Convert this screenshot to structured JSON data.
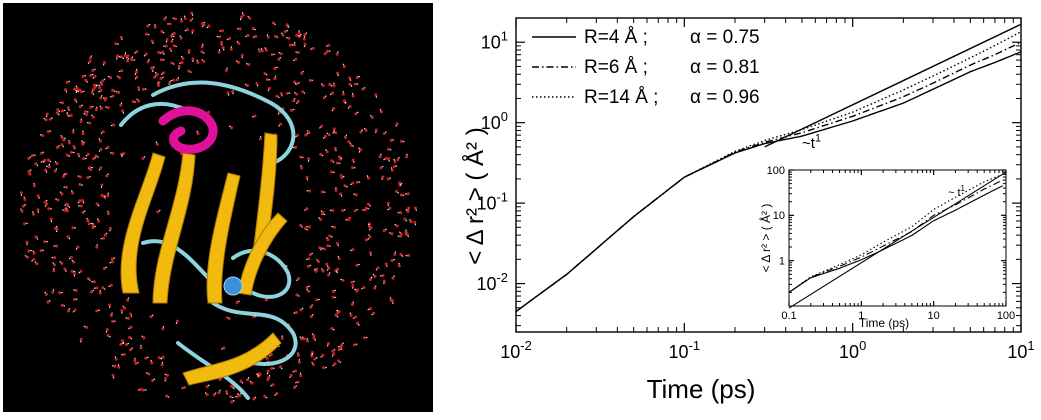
{
  "colors": {
    "background": "#ffffff",
    "axis": "#000000",
    "protein_bg": "#000000",
    "water_oxygen": "#d02020",
    "water_hydrogen": "#f0f0f0",
    "sheet": "#f2b90f",
    "sheet_dark": "#b07c05",
    "coil": "#8fd3df",
    "helix": "#e0109a",
    "ion": "#3c8fd8"
  },
  "chart_data": [
    {
      "type": "line",
      "scale": "log-log",
      "title": "",
      "xlabel": "Time (ps)",
      "ylabel": "< Δ r² > ( Å² )",
      "xlim": [
        0.01,
        10
      ],
      "ylim": [
        0.0025,
        20
      ],
      "x_ticks": [
        {
          "value": 0.01,
          "base": "10",
          "exp": "-2"
        },
        {
          "value": 0.1,
          "base": "10",
          "exp": "-1"
        },
        {
          "value": 1,
          "base": "10",
          "exp": "0"
        },
        {
          "value": 10,
          "base": "10",
          "exp": "1"
        }
      ],
      "y_ticks": [
        {
          "value": 0.01,
          "base": "10",
          "exp": "-2"
        },
        {
          "value": 0.1,
          "base": "10",
          "exp": "-1"
        },
        {
          "value": 1,
          "base": "10",
          "exp": "0"
        },
        {
          "value": 10,
          "base": "10",
          "exp": "1"
        }
      ],
      "legend_position": "top-left",
      "series": [
        {
          "name": "R=4 Å ;",
          "alpha_label": "α = 0.75",
          "style": "solid",
          "x": [
            0.01,
            0.02,
            0.05,
            0.1,
            0.2,
            0.3,
            0.5,
            1,
            2,
            3,
            5,
            7,
            10
          ],
          "y": [
            0.0045,
            0.013,
            0.068,
            0.21,
            0.42,
            0.55,
            0.68,
            1.05,
            1.75,
            2.6,
            4.3,
            5.6,
            7.6
          ]
        },
        {
          "name": "R=6 Å ;",
          "alpha_label": "α = 0.81",
          "style": "dashdot",
          "x": [
            0.01,
            0.02,
            0.05,
            0.1,
            0.2,
            0.3,
            0.5,
            1,
            2,
            3,
            5,
            7,
            10
          ],
          "y": [
            0.0045,
            0.013,
            0.068,
            0.21,
            0.43,
            0.57,
            0.75,
            1.2,
            2.1,
            3.1,
            5.2,
            7.0,
            10.0
          ]
        },
        {
          "name": "R=14 Å ;",
          "alpha_label": "α = 0.96",
          "style": "dotted",
          "x": [
            0.01,
            0.02,
            0.05,
            0.1,
            0.2,
            0.3,
            0.5,
            1,
            2,
            3,
            5,
            7,
            10
          ],
          "y": [
            0.0045,
            0.013,
            0.068,
            0.21,
            0.44,
            0.6,
            0.82,
            1.35,
            2.55,
            3.8,
            6.4,
            9.1,
            13.5
          ]
        }
      ],
      "reference_line": {
        "label": "~t",
        "label_exp": "1",
        "x": [
          0.3,
          10
        ],
        "y": [
          0.5,
          16.7
        ]
      }
    },
    {
      "type": "line",
      "scale": "log-log",
      "title": "",
      "xlabel": "Time (ps)",
      "ylabel": "< Δ r² > ( Å² )",
      "xlim": [
        0.1,
        100
      ],
      "ylim": [
        0.1,
        100
      ],
      "x_ticks": [
        {
          "value": 0.1,
          "label": "0.1"
        },
        {
          "value": 1,
          "label": "1"
        },
        {
          "value": 10,
          "label": "10"
        },
        {
          "value": 100,
          "label": "100"
        }
      ],
      "y_ticks": [
        {
          "value": 1,
          "label": "1"
        },
        {
          "value": 10,
          "label": "10"
        },
        {
          "value": 100,
          "label": "100"
        }
      ],
      "series": [
        {
          "style": "solid",
          "x": [
            0.1,
            0.2,
            0.5,
            1,
            2,
            5,
            10,
            20,
            50,
            90
          ],
          "y": [
            0.2,
            0.42,
            0.68,
            1.05,
            1.75,
            3.6,
            7.6,
            13,
            28,
            45
          ]
        },
        {
          "style": "dashdot",
          "x": [
            0.1,
            0.2,
            0.5,
            1,
            2,
            5,
            10,
            20,
            50,
            90
          ],
          "y": [
            0.2,
            0.43,
            0.75,
            1.2,
            2.1,
            4.4,
            10,
            17,
            38,
            60
          ]
        },
        {
          "style": "dotted",
          "x": [
            0.1,
            0.2,
            0.5,
            1,
            2,
            5,
            10,
            20,
            50,
            90
          ],
          "y": [
            0.2,
            0.44,
            0.82,
            1.35,
            2.55,
            5.6,
            13.5,
            25,
            55,
            80
          ]
        }
      ],
      "reference_line": {
        "label": "~ t",
        "label_exp": "1",
        "x": [
          0.1,
          100
        ],
        "y": [
          0.09,
          90
        ]
      }
    }
  ]
}
